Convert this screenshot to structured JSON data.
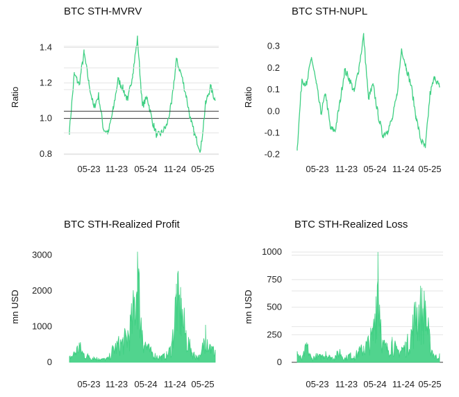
{
  "colors": {
    "series": "#3ecf82",
    "grid": "#e4e4e4",
    "baseline": "#333333",
    "text": "#111111"
  },
  "chart_data": [
    {
      "type": "line",
      "title": "BTC STH-MVRV",
      "xlabel": "",
      "ylabel": "Ratio",
      "x_ticks": [
        "05-23",
        "11-23",
        "05-24",
        "11-24",
        "05-25"
      ],
      "y_ticks": [
        "0.8",
        "1.0",
        "1.2",
        "1.4"
      ],
      "ylim": [
        0.76,
        1.48
      ],
      "baseline": 1.0,
      "grid": true,
      "x": [
        "2023-01",
        "2023-02",
        "2023-03",
        "2023-04",
        "2023-05",
        "2023-06",
        "2023-07",
        "2023-08",
        "2023-09",
        "2023-10",
        "2023-11",
        "2023-12",
        "2024-01",
        "2024-02",
        "2024-03",
        "2024-04",
        "2024-05",
        "2024-06",
        "2024-07",
        "2024-08",
        "2024-09",
        "2024-10",
        "2024-11",
        "2024-12",
        "2025-01",
        "2025-02",
        "2025-03",
        "2025-04",
        "2025-05",
        "2025-06",
        "2025-07"
      ],
      "series": [
        {
          "values": [
            0.93,
            1.25,
            1.19,
            1.37,
            1.2,
            1.06,
            1.13,
            0.94,
            0.92,
            1.05,
            1.22,
            1.17,
            1.1,
            1.25,
            1.45,
            1.07,
            1.12,
            0.99,
            0.9,
            0.92,
            0.96,
            1.08,
            1.33,
            1.25,
            1.13,
            0.98,
            0.89,
            0.82,
            1.08,
            1.18,
            1.1
          ]
        }
      ]
    },
    {
      "type": "line",
      "title": "BTC STH-NUPL",
      "xlabel": "",
      "ylabel": "Ratio",
      "x_ticks": [
        "05-23",
        "11-23",
        "05-24",
        "11-24",
        "05-25"
      ],
      "y_ticks": [
        "0.3",
        "0.2",
        "0.1",
        "0.0",
        "-0.1",
        "-0.2"
      ],
      "ylim": [
        -0.23,
        0.36
      ],
      "baseline": 0.0,
      "grid": true,
      "x": [
        "2023-01",
        "2023-02",
        "2023-03",
        "2023-04",
        "2023-05",
        "2023-06",
        "2023-07",
        "2023-08",
        "2023-09",
        "2023-10",
        "2023-11",
        "2023-12",
        "2024-01",
        "2024-02",
        "2024-03",
        "2024-04",
        "2024-05",
        "2024-06",
        "2024-07",
        "2024-08",
        "2024-09",
        "2024-10",
        "2024-11",
        "2024-12",
        "2025-01",
        "2025-02",
        "2025-03",
        "2025-04",
        "2025-05",
        "2025-06",
        "2025-07"
      ],
      "series": [
        {
          "values": [
            -0.17,
            0.15,
            0.12,
            0.25,
            0.13,
            -0.01,
            0.08,
            -0.08,
            -0.09,
            0.04,
            0.19,
            0.15,
            0.09,
            0.2,
            0.35,
            0.06,
            0.12,
            -0.01,
            -0.11,
            -0.09,
            -0.04,
            0.07,
            0.29,
            0.2,
            0.12,
            -0.02,
            -0.13,
            -0.17,
            0.08,
            0.16,
            0.11
          ]
        }
      ]
    },
    {
      "type": "area",
      "title": "BTC STH-Realized Profit",
      "xlabel": "",
      "ylabel": "mn USD",
      "x_ticks": [
        "05-23",
        "11-23",
        "05-24",
        "11-24",
        "05-25"
      ],
      "y_ticks": [
        "3000",
        "2000",
        "1000",
        "0"
      ],
      "ylim": [
        0,
        3150
      ],
      "baseline": 0,
      "grid": true,
      "x": [
        "2023-01",
        "2023-02",
        "2023-03",
        "2023-04",
        "2023-05",
        "2023-06",
        "2023-07",
        "2023-08",
        "2023-09",
        "2023-10",
        "2023-11",
        "2023-12",
        "2024-01",
        "2024-02",
        "2024-03",
        "2024-04",
        "2024-05",
        "2024-06",
        "2024-07",
        "2024-08",
        "2024-09",
        "2024-10",
        "2024-11",
        "2024-12",
        "2025-01",
        "2025-02",
        "2025-03",
        "2025-04",
        "2025-05",
        "2025-06",
        "2025-07"
      ],
      "series": [
        {
          "values": [
            150,
            300,
            550,
            250,
            200,
            150,
            120,
            100,
            130,
            450,
            600,
            700,
            900,
            1500,
            3100,
            900,
            500,
            300,
            200,
            180,
            250,
            500,
            2200,
            1800,
            900,
            400,
            200,
            180,
            1050,
            500,
            350
          ]
        }
      ]
    },
    {
      "type": "area",
      "title": "BTC STH-Realized Loss",
      "xlabel": "",
      "ylabel": "mn USD",
      "x_ticks": [
        "05-23",
        "11-23",
        "05-24",
        "11-24",
        "05-25"
      ],
      "y_ticks": [
        "1000",
        "750",
        "500",
        "250",
        "0"
      ],
      "ylim": [
        0,
        1020
      ],
      "baseline": 0,
      "grid": true,
      "x": [
        "2023-01",
        "2023-02",
        "2023-03",
        "2023-04",
        "2023-05",
        "2023-06",
        "2023-07",
        "2023-08",
        "2023-09",
        "2023-10",
        "2023-11",
        "2023-12",
        "2024-01",
        "2024-02",
        "2024-03",
        "2024-04",
        "2024-05",
        "2024-06",
        "2024-07",
        "2024-08",
        "2024-09",
        "2024-10",
        "2024-11",
        "2024-12",
        "2025-01",
        "2025-02",
        "2025-03",
        "2025-04",
        "2025-05",
        "2025-06",
        "2025-07"
      ],
      "series": [
        {
          "values": [
            100,
            30,
            180,
            40,
            70,
            60,
            100,
            50,
            60,
            120,
            40,
            80,
            60,
            120,
            150,
            220,
            300,
            1000,
            200,
            150,
            230,
            120,
            140,
            180,
            300,
            550,
            590,
            560,
            200,
            60,
            80
          ]
        }
      ]
    }
  ]
}
